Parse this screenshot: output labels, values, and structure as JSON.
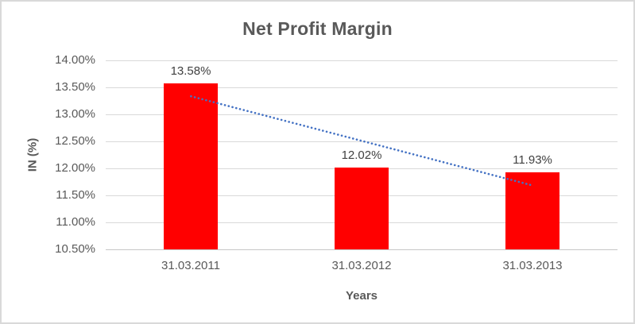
{
  "chart_data": {
    "type": "bar",
    "title": "Net Profit Margin",
    "xlabel": "Years",
    "ylabel": "IN (%)",
    "categories": [
      "31.03.2011",
      "31.03.2012",
      "31.03.2013"
    ],
    "series": [
      {
        "name": "Net Profit Margin",
        "values": [
          13.58,
          12.02,
          11.93
        ],
        "data_labels": [
          "13.58%",
          "12.02%",
          "11.93%"
        ],
        "color": "#ff0000"
      }
    ],
    "trendline": {
      "type": "linear",
      "style": "dotted",
      "color": "#4472c4"
    },
    "ylim": [
      10.5,
      14.0
    ],
    "ytick_step": 0.5,
    "yticks": [
      "14.00%",
      "13.50%",
      "13.00%",
      "12.50%",
      "12.00%",
      "11.50%",
      "11.00%",
      "10.50%"
    ],
    "grid": true,
    "legend": "none",
    "colors": {
      "bar": "#ff0000",
      "trendline": "#4472c4",
      "gridline": "#d9d9d9",
      "axis_text": "#595959",
      "data_label_text": "#404040",
      "frame_border": "#d9d9d9"
    }
  }
}
